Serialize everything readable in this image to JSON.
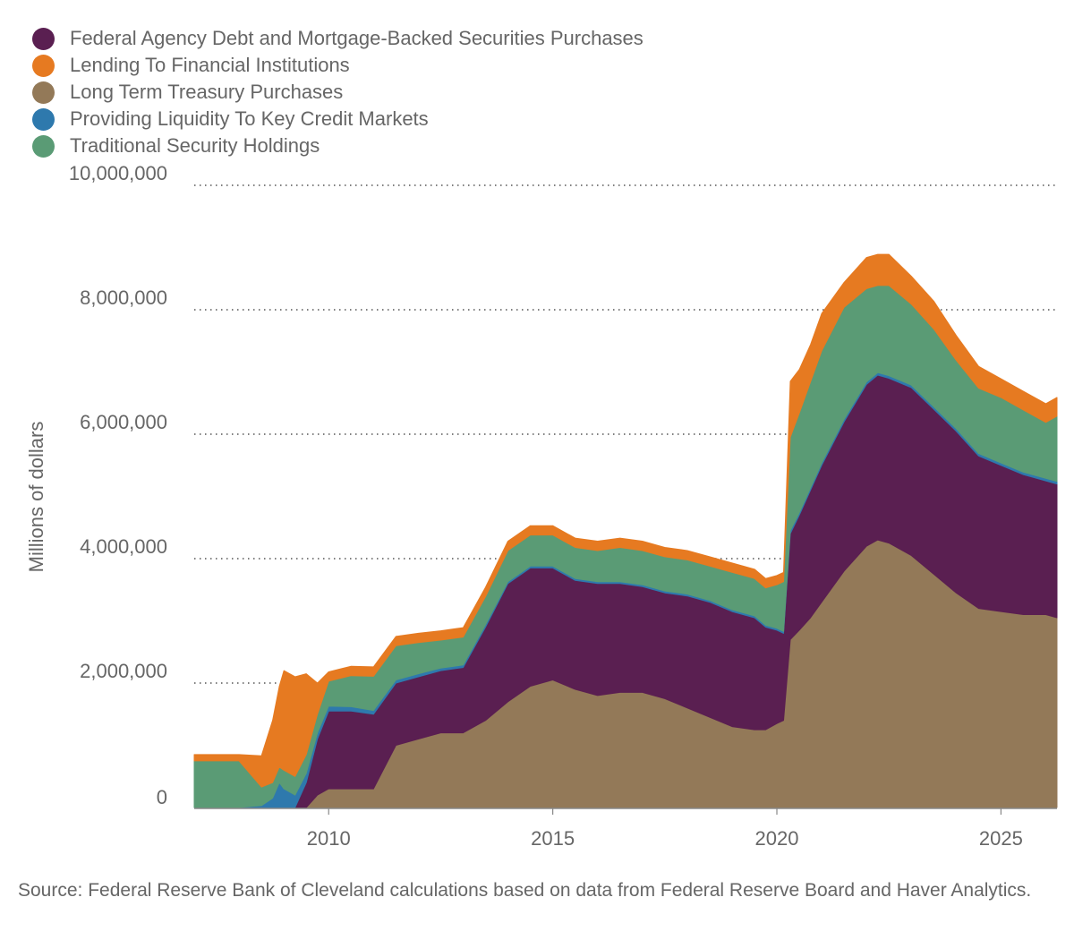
{
  "chart_data": {
    "type": "area",
    "stacked": true,
    "title": "",
    "xlabel": "",
    "ylabel": "Millions of dollars",
    "xlim": [
      2007.0,
      2026.25
    ],
    "ylim": [
      0,
      10000000
    ],
    "yticks": [
      0,
      2000000,
      4000000,
      6000000,
      8000000,
      10000000
    ],
    "ytick_labels": [
      "0",
      "2,000,000",
      "4,000,000",
      "6,000,000",
      "8,000,000",
      "10,000,000"
    ],
    "xticks": [
      2010,
      2015,
      2020,
      2025
    ],
    "xtick_labels": [
      "2010",
      "2015",
      "2020",
      "2025"
    ],
    "grid": "horizontal dotted",
    "legend_position": "top-left",
    "x": [
      2007.0,
      2008.0,
      2008.5,
      2008.75,
      2008.9,
      2009.0,
      2009.25,
      2009.5,
      2009.75,
      2010.0,
      2010.5,
      2011.0,
      2011.5,
      2012.0,
      2012.5,
      2013.0,
      2013.5,
      2014.0,
      2014.5,
      2015.0,
      2015.5,
      2016.0,
      2016.5,
      2017.0,
      2017.5,
      2018.0,
      2018.5,
      2019.0,
      2019.5,
      2019.75,
      2020.0,
      2020.15,
      2020.3,
      2020.5,
      2020.75,
      2021.0,
      2021.5,
      2022.0,
      2022.25,
      2022.5,
      2023.0,
      2023.5,
      2024.0,
      2024.5,
      2025.0,
      2025.5,
      2026.0,
      2026.25
    ],
    "series": [
      {
        "name": "Long Term Treasury Purchases",
        "color": "#937958",
        "values": [
          0,
          0,
          0,
          0,
          0,
          0,
          0,
          0,
          200000,
          300000,
          300000,
          300000,
          1000000,
          1100000,
          1200000,
          1200000,
          1400000,
          1700000,
          1950000,
          2050000,
          1900000,
          1800000,
          1850000,
          1850000,
          1750000,
          1600000,
          1450000,
          1300000,
          1250000,
          1250000,
          1350000,
          1400000,
          2700000,
          2850000,
          3050000,
          3300000,
          3800000,
          4200000,
          4300000,
          4250000,
          4050000,
          3750000,
          3450000,
          3200000,
          3150000,
          3100000,
          3100000,
          3050000
        ]
      },
      {
        "name": "Federal Agency Debt and Mortgage-Backed Securities Purchases",
        "color": "#5a1f51",
        "values": [
          0,
          0,
          0,
          0,
          0,
          0,
          0,
          400000,
          900000,
          1250000,
          1250000,
          1200000,
          1000000,
          1000000,
          1000000,
          1050000,
          1500000,
          1900000,
          1900000,
          1800000,
          1750000,
          1800000,
          1750000,
          1700000,
          1700000,
          1800000,
          1850000,
          1850000,
          1800000,
          1650000,
          1500000,
          1400000,
          1700000,
          1850000,
          2050000,
          2200000,
          2400000,
          2600000,
          2650000,
          2650000,
          2700000,
          2650000,
          2600000,
          2450000,
          2350000,
          2250000,
          2150000,
          2150000
        ]
      },
      {
        "name": "Providing Liquidity To Key Credit Markets",
        "color": "#2e79ad",
        "values": [
          0,
          0,
          30000,
          150000,
          400000,
          300000,
          200000,
          150000,
          100000,
          80000,
          70000,
          60000,
          50000,
          50000,
          40000,
          40000,
          40000,
          30000,
          30000,
          30000,
          30000,
          30000,
          30000,
          30000,
          30000,
          30000,
          30000,
          30000,
          30000,
          30000,
          30000,
          30000,
          50000,
          40000,
          40000,
          40000,
          40000,
          40000,
          40000,
          40000,
          40000,
          40000,
          40000,
          40000,
          40000,
          40000,
          40000,
          40000
        ]
      },
      {
        "name": "Traditional Security Holdings",
        "color": "#5a9b75",
        "values": [
          750000,
          750000,
          300000,
          250000,
          250000,
          300000,
          300000,
          300000,
          300000,
          400000,
          500000,
          550000,
          550000,
          500000,
          450000,
          450000,
          450000,
          500000,
          500000,
          500000,
          500000,
          500000,
          550000,
          550000,
          550000,
          550000,
          550000,
          600000,
          600000,
          600000,
          700000,
          800000,
          1500000,
          1600000,
          1700000,
          1800000,
          1800000,
          1500000,
          1400000,
          1450000,
          1300000,
          1250000,
          1100000,
          1050000,
          1050000,
          1000000,
          900000,
          1050000
        ]
      },
      {
        "name": "Lending To Financial Institutions",
        "color": "#e67a21",
        "values": [
          100000,
          100000,
          500000,
          1000000,
          1300000,
          1600000,
          1600000,
          1300000,
          500000,
          150000,
          150000,
          150000,
          150000,
          150000,
          150000,
          150000,
          150000,
          150000,
          150000,
          150000,
          150000,
          150000,
          150000,
          150000,
          150000,
          150000,
          150000,
          150000,
          150000,
          150000,
          150000,
          150000,
          900000,
          700000,
          600000,
          600000,
          400000,
          500000,
          500000,
          500000,
          450000,
          450000,
          400000,
          350000,
          300000,
          300000,
          300000,
          300000
        ]
      }
    ],
    "legend_order": [
      "Federal Agency Debt and Mortgage-Backed Securities Purchases",
      "Lending To Financial Institutions",
      "Long Term Treasury Purchases",
      "Providing Liquidity To Key Credit Markets",
      "Traditional Security Holdings"
    ]
  },
  "legend": [
    {
      "label": "Federal Agency Debt and Mortgage-Backed Securities Purchases",
      "color": "#5a1f51"
    },
    {
      "label": "Lending To Financial Institutions",
      "color": "#e67a21"
    },
    {
      "label": "Long Term Treasury Purchases",
      "color": "#937958"
    },
    {
      "label": "Providing Liquidity To Key Credit Markets",
      "color": "#2e79ad"
    },
    {
      "label": "Traditional Security Holdings",
      "color": "#5a9b75"
    }
  ],
  "source_note": "Source: Federal Reserve Bank of Cleveland calculations based on data from Federal Reserve Board and Haver Analytics."
}
